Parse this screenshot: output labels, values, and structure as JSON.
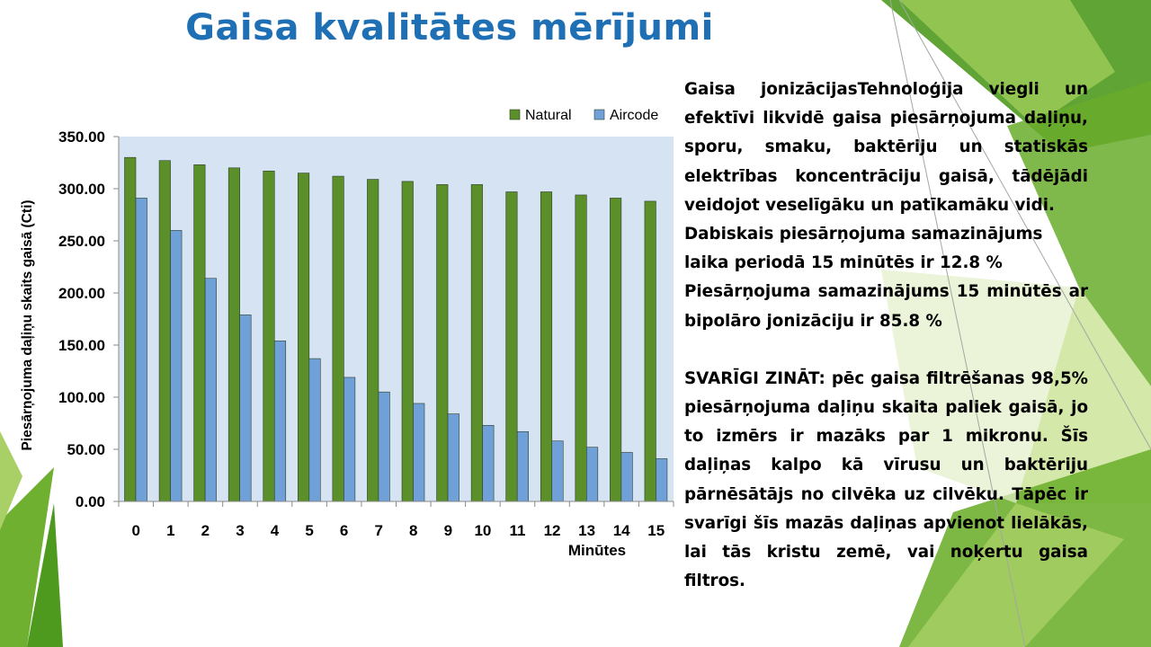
{
  "slide": {
    "title": "Gaisa kvalitātes mērījumi",
    "paragraphs": {
      "intro": "Gaisa jonizācijasTehnoloģija viegli un efektīvi likvidē gaisa piesārņojuma daļiņu, sporu, smaku, baktēriju un statiskās elektrības koncentrāciju gaisā, tādējādi veidojot veselīgāku un patīkamāku vidi.",
      "natural_reduction": "Dabiskais piesārņojuma samazinājums laika periodā 15 minūtēs ir 12.8 %",
      "bipolar_reduction": "Piesārņojuma samazinājums 15 minūtēs ar bipolāro jonizāciju ir 85.8 %",
      "important": "SVARĪGI ZINĀT: pēc gaisa filtrēšanas 98,5% piesārņojuma daļiņu skaita paliek gaisā, jo to izmērs ir mazāks par 1 mikronu. Šīs daļiņas kalpo kā vīrusu un baktēriju pārnēsātājs no cilvēka uz cilvēku. Tāpēc ir svarīgi šīs mazās daļiņas apvienot lielākās, lai tās kristu zemē, vai noķertu gaisa filtros."
    }
  },
  "chart_data": {
    "type": "bar",
    "title": "",
    "xlabel": "Minūtes",
    "ylabel": "Piesārņojuma daļiņu skaits gaisā (Cti)",
    "categories": [
      "0",
      "1",
      "2",
      "3",
      "4",
      "5",
      "6",
      "7",
      "8",
      "9",
      "10",
      "11",
      "12",
      "13",
      "14",
      "15"
    ],
    "series": [
      {
        "name": "Natural",
        "color": "#5a8f2a",
        "values": [
          330,
          327,
          323,
          320,
          317,
          315,
          312,
          309,
          307,
          304,
          304,
          297,
          297,
          294,
          291,
          288
        ]
      },
      {
        "name": "Aircode",
        "color": "#6fa0d8",
        "values": [
          291,
          260,
          214,
          179,
          154,
          137,
          119,
          105,
          94,
          84,
          73,
          67,
          58,
          52,
          47,
          41
        ]
      }
    ],
    "ylim": [
      0,
      350
    ],
    "yticks": [
      "0.00",
      "50.00",
      "100.00",
      "150.00",
      "200.00",
      "250.00",
      "300.00",
      "350.00"
    ],
    "grid": false,
    "legend": "top-right",
    "plot_background": "#d6e3f3"
  }
}
